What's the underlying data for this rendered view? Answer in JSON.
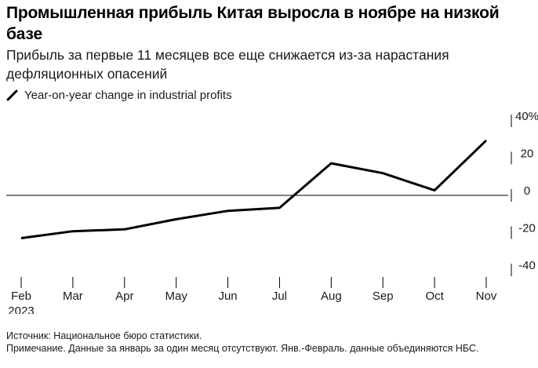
{
  "title": "Промышленная прибыль Китая выросла в ноябре на низкой базе",
  "subtitle": "Прибыль за первые 11 месяцев все еще снижается из-за нарастания дефляционных опасений",
  "legend": {
    "label": "Year-on-year change in industrial profits",
    "icon": "diagonal-line-icon"
  },
  "colors": {
    "line": "#000000",
    "zero_line": "#000000",
    "tick": "#000000",
    "text": "#1a1a1a"
  },
  "chart_data": {
    "type": "line",
    "title": "Промышленная прибыль Китая выросла в ноябре на низкой базе",
    "xlabel": "",
    "ylabel": "",
    "categories": [
      "Feb",
      "Mar",
      "Apr",
      "May",
      "Jun",
      "Jul",
      "Aug",
      "Sep",
      "Oct",
      "Nov"
    ],
    "x_tick_labels": [
      "Feb",
      "Mar",
      "Apr",
      "May",
      "Jun",
      "Jul",
      "Aug",
      "Sep",
      "Oct",
      "Nov"
    ],
    "x_sub_label": "2023",
    "series": [
      {
        "name": "Year-on-year change in industrial profits",
        "values": [
          -22.9,
          -19.2,
          -18.2,
          -12.8,
          -8.3,
          -6.7,
          17.2,
          11.9,
          2.7,
          29.5
        ]
      }
    ],
    "ylim": [
      -45,
      45
    ],
    "y_ticks": [
      {
        "value": 40,
        "label": "40%"
      },
      {
        "value": 20,
        "label": "20"
      },
      {
        "value": 0,
        "label": "0"
      },
      {
        "value": -20,
        "label": "-20"
      },
      {
        "value": -40,
        "label": "-40"
      }
    ],
    "grid": false,
    "zero_line": true,
    "legend_position": "top-left"
  },
  "notes": {
    "source": "Источник: Национальное бюро статистики.",
    "note": "Примечание. Данные за январь за один месяц отсутствуют. Янв.-Февраль. данные объединяются НБС."
  }
}
